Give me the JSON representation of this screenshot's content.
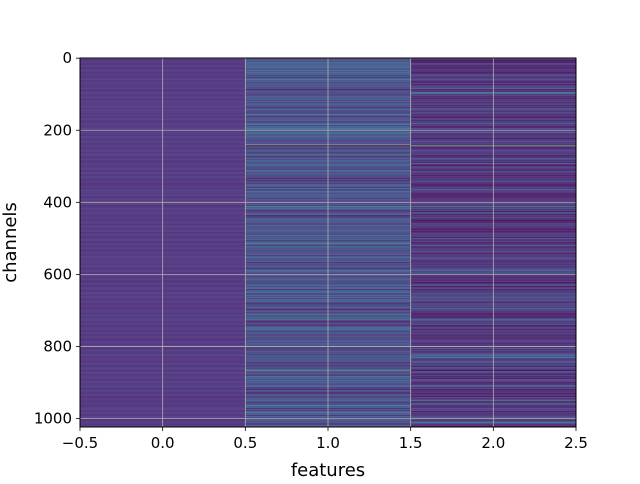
{
  "chart_data": {
    "type": "heatmap",
    "title": "",
    "xlabel": "features",
    "ylabel": "channels",
    "xlim": [
      -0.5,
      2.5
    ],
    "ylim": [
      1023.5,
      -0.5
    ],
    "y_inverted": true,
    "n_columns": 3,
    "n_rows": 1024,
    "colormap": "viridis",
    "grid": true,
    "x_ticks": [
      -0.5,
      0.0,
      0.5,
      1.0,
      1.5,
      2.0,
      2.5
    ],
    "x_tick_labels": [
      "−0.5",
      "0.0",
      "0.5",
      "1.0",
      "1.5",
      "2.0",
      "2.5"
    ],
    "y_ticks": [
      0,
      200,
      400,
      600,
      800,
      1000
    ],
    "y_tick_labels": [
      "0",
      "200",
      "400",
      "600",
      "800",
      "1000"
    ],
    "columns": [
      {
        "x": 0,
        "base_value": 0.12,
        "noise": 0.03,
        "bands": []
      },
      {
        "x": 1,
        "base_value": 0.2,
        "noise": 0.18,
        "bands": [
          {
            "channel": 12,
            "value": 0.45
          },
          {
            "channel": 200,
            "value": 0.5
          },
          {
            "channel": 213,
            "value": 0.45
          },
          {
            "channel": 240,
            "value": 0.92
          },
          {
            "channel": 312,
            "value": 0.5
          },
          {
            "channel": 405,
            "value": 0.5
          },
          {
            "channel": 412,
            "value": 0.6
          },
          {
            "channel": 418,
            "value": 0.55
          },
          {
            "channel": 515,
            "value": 0.55
          },
          {
            "channel": 600,
            "value": 0.65
          },
          {
            "channel": 718,
            "value": 0.5
          },
          {
            "channel": 866,
            "value": 0.75
          },
          {
            "channel": 945,
            "value": 0.55
          },
          {
            "channel": 963,
            "value": 0.5
          }
        ]
      },
      {
        "x": 2,
        "base_value": 0.1,
        "noise": 0.2,
        "bands": [
          {
            "channel": 95,
            "value": 0.7
          },
          {
            "channel": 200,
            "value": 0.45
          },
          {
            "channel": 240,
            "value": 0.0
          },
          {
            "channel": 242,
            "value": 0.85
          },
          {
            "channel": 412,
            "value": 0.6
          },
          {
            "channel": 418,
            "value": 0.5
          },
          {
            "channel": 520,
            "value": 0.55
          },
          {
            "channel": 598,
            "value": 0.55
          },
          {
            "channel": 866,
            "value": 0.0
          },
          {
            "channel": 950,
            "value": 0.65
          },
          {
            "channel": 958,
            "value": 0.55
          }
        ]
      }
    ]
  }
}
